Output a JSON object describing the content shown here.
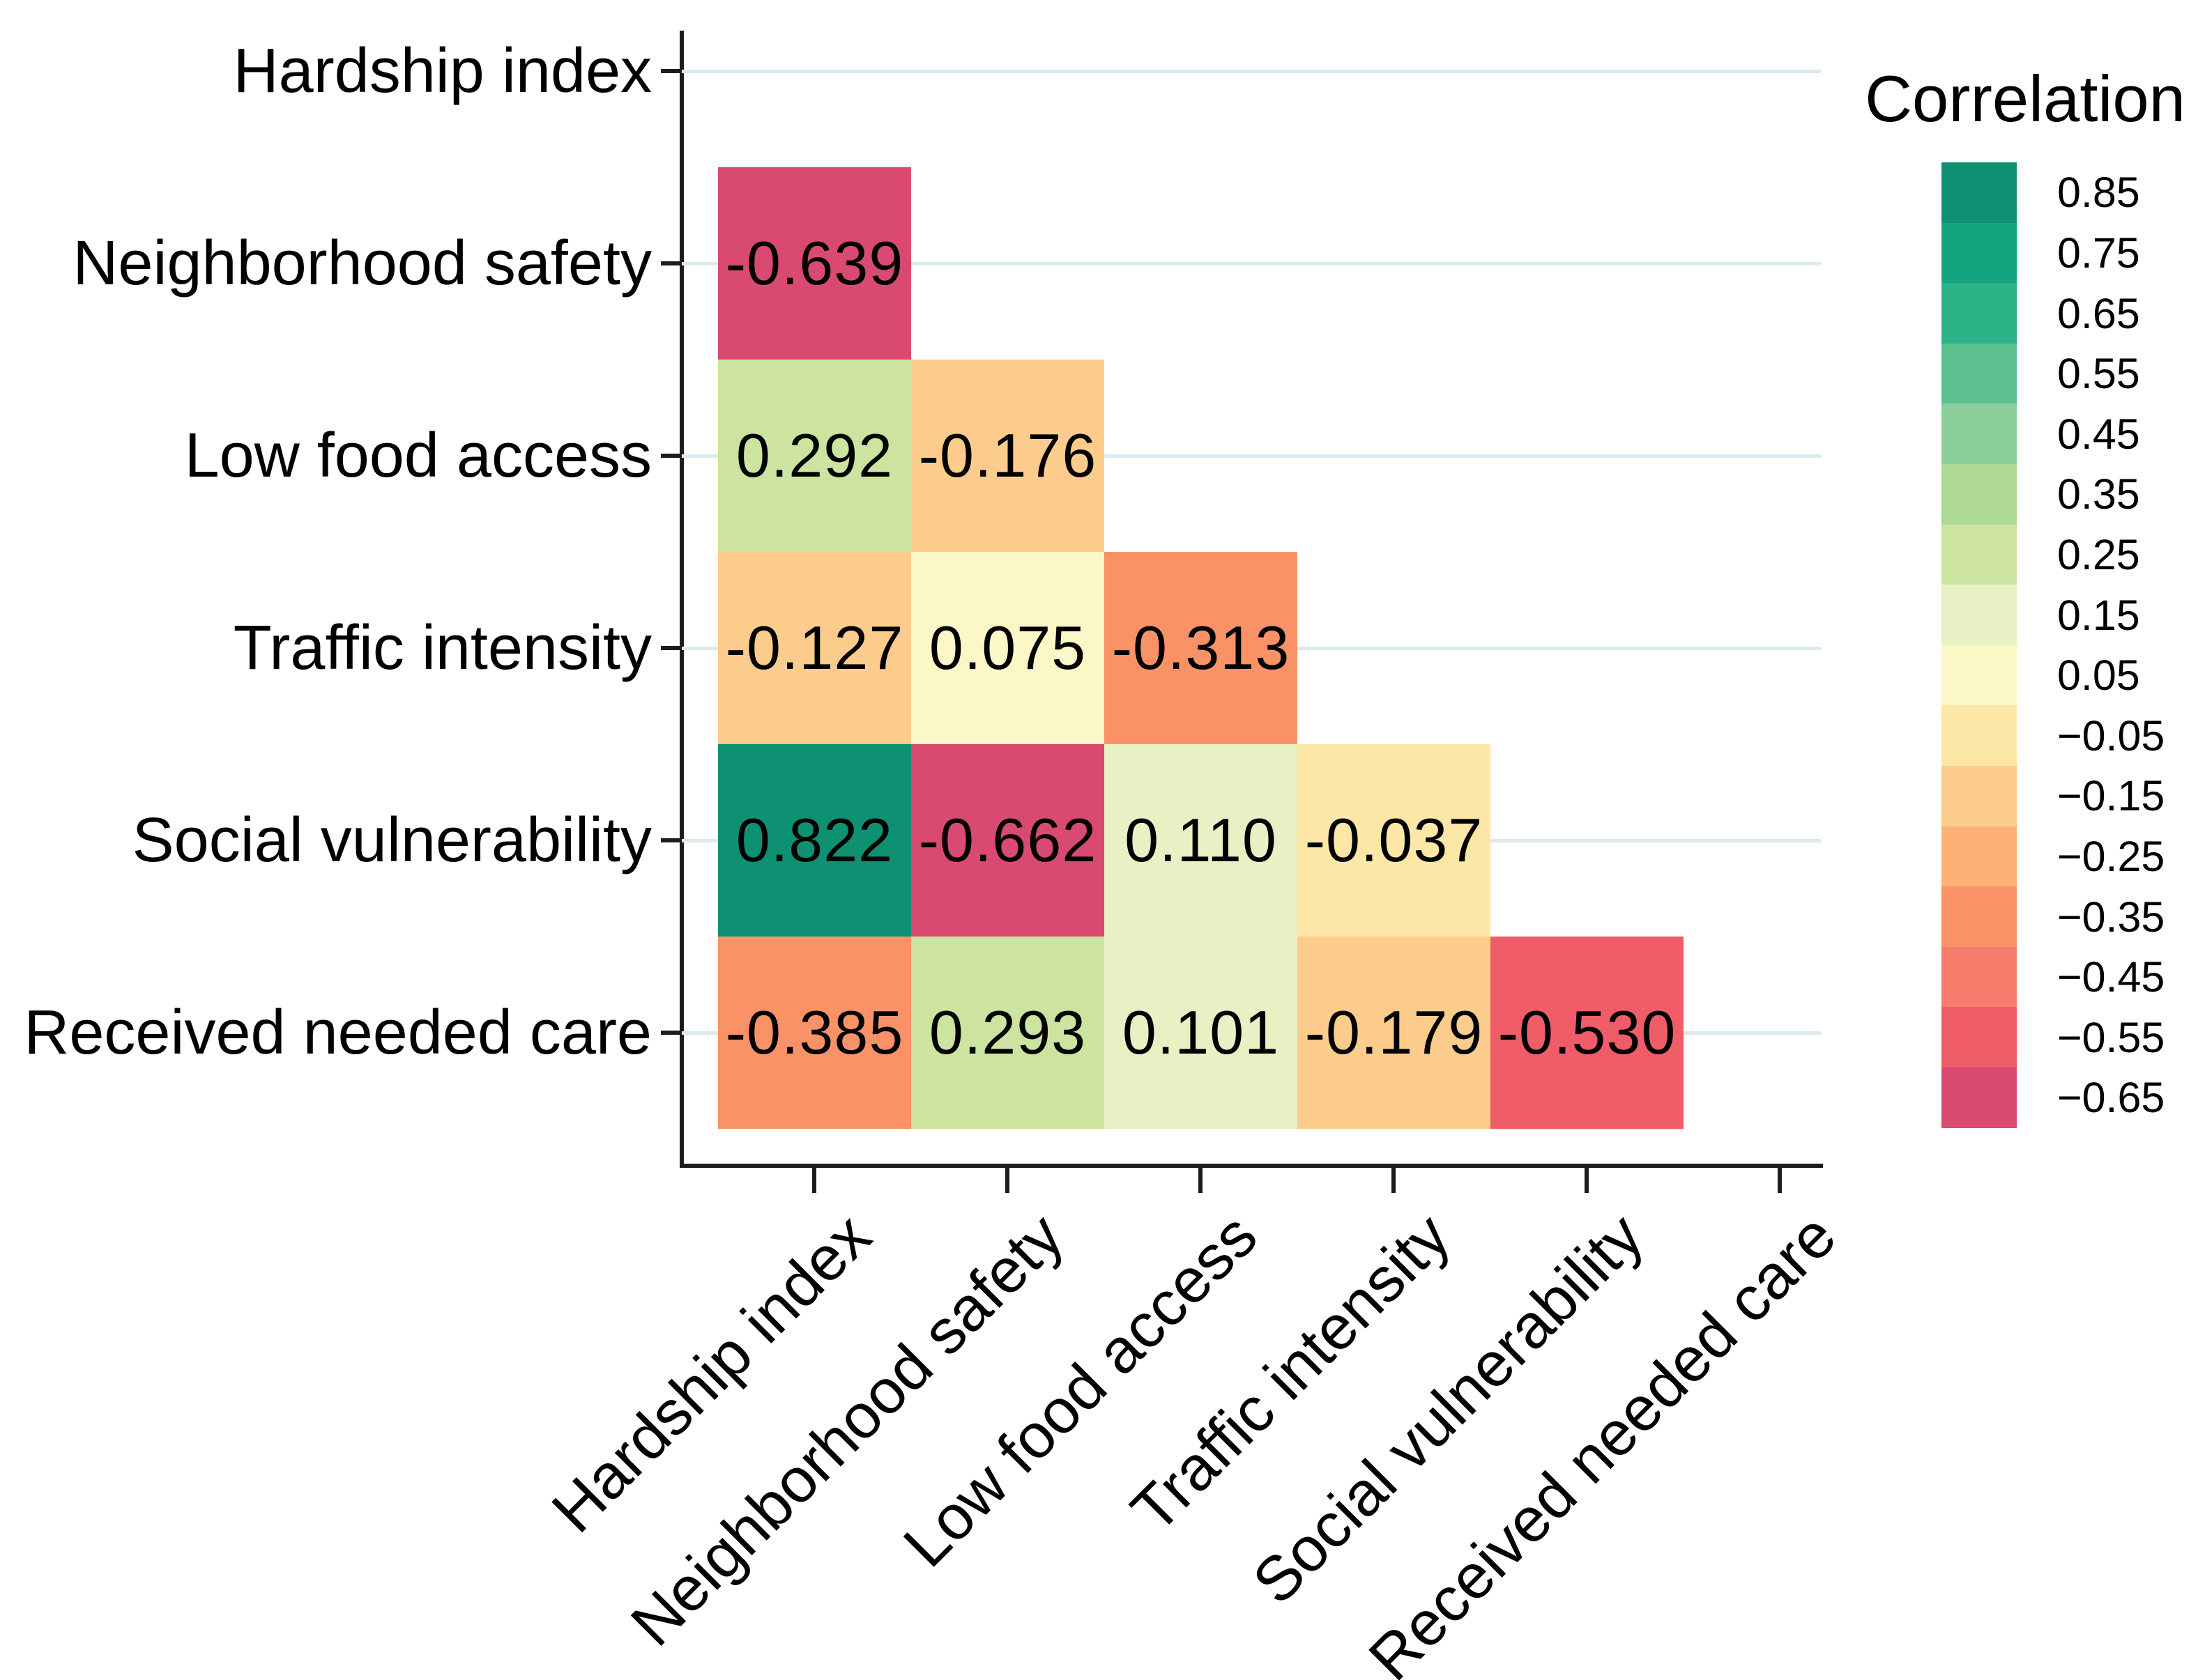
{
  "chart_data": {
    "type": "heatmap",
    "title": "",
    "triangle": "lower-without-diagonal",
    "variables": [
      "Hardship index",
      "Neighborhood safety",
      "Low food access",
      "Traffic intensity",
      "Social vulnerability",
      "Received needed care"
    ],
    "x_axis": {
      "labels_rotation_deg": 45,
      "gridlines": false
    },
    "y_axis": {
      "gridlines": true
    },
    "cells": [
      {
        "row": 1,
        "col": 0,
        "value": -0.639,
        "label": "-0.639"
      },
      {
        "row": 2,
        "col": 0,
        "value": 0.292,
        "label": "0.292"
      },
      {
        "row": 2,
        "col": 1,
        "value": -0.176,
        "label": "-0.176"
      },
      {
        "row": 3,
        "col": 0,
        "value": -0.127,
        "label": "-0.127"
      },
      {
        "row": 3,
        "col": 1,
        "value": 0.075,
        "label": "0.075"
      },
      {
        "row": 3,
        "col": 2,
        "value": -0.313,
        "label": "-0.313"
      },
      {
        "row": 4,
        "col": 0,
        "value": 0.822,
        "label": "0.822"
      },
      {
        "row": 4,
        "col": 1,
        "value": -0.662,
        "label": "-0.662"
      },
      {
        "row": 4,
        "col": 2,
        "value": 0.11,
        "label": "0.110"
      },
      {
        "row": 4,
        "col": 3,
        "value": -0.037,
        "label": "-0.037"
      },
      {
        "row": 5,
        "col": 0,
        "value": -0.385,
        "label": "-0.385"
      },
      {
        "row": 5,
        "col": 1,
        "value": 0.293,
        "label": "0.293"
      },
      {
        "row": 5,
        "col": 2,
        "value": 0.101,
        "label": "0.101"
      },
      {
        "row": 5,
        "col": 3,
        "value": -0.179,
        "label": "-0.179"
      },
      {
        "row": 5,
        "col": 4,
        "value": -0.53,
        "label": "-0.530"
      }
    ],
    "colorbar": {
      "title": "Correlation",
      "position": "right",
      "domain": [
        0.9,
        -0.7
      ],
      "bin_width": 0.1,
      "bin_labels": [
        "0.85",
        "0.75",
        "0.65",
        "0.55",
        "0.45",
        "0.35",
        "0.25",
        "0.15",
        "0.05",
        "−0.05",
        "−0.15",
        "−0.25",
        "−0.35",
        "−0.45",
        "−0.55",
        "−0.65"
      ],
      "bin_colors": [
        "#0E9173",
        "#14A57E",
        "#2BB287",
        "#5BC08D",
        "#8CCE9A",
        "#ADD993",
        "#CCE4A0",
        "#E7F1C4",
        "#FBF7C6",
        "#FDE7A7",
        "#FCCC8D",
        "#FCB175",
        "#FA9268",
        "#F77B6B",
        "#EE5D68",
        "#D84A6F"
      ]
    }
  }
}
